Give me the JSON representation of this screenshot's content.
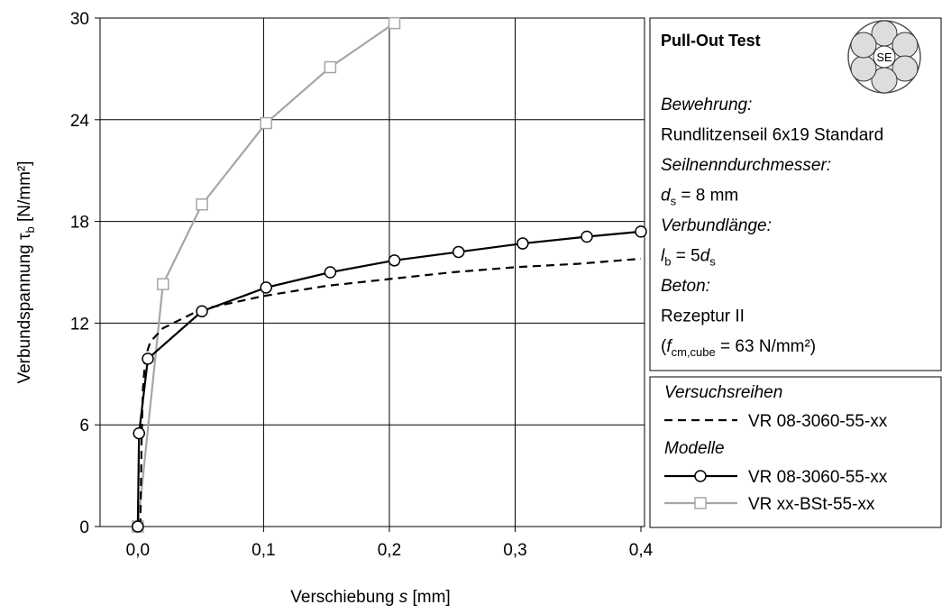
{
  "chart_data": {
    "type": "line",
    "x_label": [
      [
        "Verschiebung ",
        "n"
      ],
      [
        "s",
        "i"
      ],
      [
        " [mm]",
        "n"
      ]
    ],
    "y_label": [
      [
        "Verbundspannung τ",
        "n"
      ],
      [
        "b",
        "sub"
      ],
      [
        " [N/mm²]",
        "n"
      ]
    ],
    "xlim": [
      -0.03,
      0.4
    ],
    "ylim": [
      0,
      30
    ],
    "xticks": [
      {
        "value": 0,
        "label": "0,0"
      },
      {
        "value": 0.1,
        "label": "0,1"
      },
      {
        "value": 0.2,
        "label": "0,2"
      },
      {
        "value": 0.3,
        "label": "0,3"
      },
      {
        "value": 0.4,
        "label": "0,4"
      }
    ],
    "yticks": [
      0,
      6,
      12,
      18,
      24,
      30
    ],
    "grid": true,
    "legend_groups": [
      "Versuchsreihen",
      "Modelle"
    ],
    "series": [
      {
        "name": "VR 08-3060-55-xx",
        "color": "#000000",
        "dash": true,
        "marker": "none",
        "group": 0,
        "x": [
          0.002,
          0.003,
          0.004,
          0.006,
          0.01,
          0.02,
          0.05,
          0.1,
          0.15,
          0.2,
          0.25,
          0.3,
          0.35,
          0.4
        ],
        "values": [
          0,
          5,
          8,
          10,
          10.9,
          11.7,
          12.8,
          13.6,
          14.2,
          14.6,
          15.0,
          15.3,
          15.5,
          15.8
        ]
      },
      {
        "name": "VR 08-3060-55-xx",
        "color": "#000000",
        "dash": false,
        "marker": "circle",
        "group": 1,
        "x": [
          0,
          0.001,
          0.008,
          0.051,
          0.102,
          0.153,
          0.204,
          0.255,
          0.306,
          0.357,
          0.4
        ],
        "values": [
          0,
          5.5,
          9.9,
          12.7,
          14.1,
          15.0,
          15.7,
          16.2,
          16.7,
          17.1,
          17.4
        ]
      },
      {
        "name": "VR xx-BSt-55-xx",
        "color": "#a6a6a6",
        "dash": false,
        "marker": "square",
        "group": 1,
        "x": [
          0,
          0.02,
          0.051,
          0.102,
          0.153,
          0.204
        ],
        "values": [
          0,
          14.3,
          19.0,
          23.8,
          27.1,
          29.7
        ]
      }
    ]
  },
  "info": {
    "title": "Pull-Out Test",
    "icon_label": "SE",
    "lines": [
      [
        [
          "Bewehrung:",
          "i"
        ]
      ],
      [
        [
          "Rundlitzenseil 6x19 Standard",
          "n"
        ]
      ],
      [
        [
          "Seilnenndurchmesser:",
          "i"
        ]
      ],
      [
        [
          "d",
          "i"
        ],
        [
          "s",
          "sub"
        ],
        [
          " = 8 mm",
          "n"
        ]
      ],
      [
        [
          "Verbundlänge:",
          "i"
        ]
      ],
      [
        [
          "l",
          "i"
        ],
        [
          "b",
          "sub"
        ],
        [
          " = 5",
          "n"
        ],
        [
          "d",
          "i"
        ],
        [
          "s",
          "sub"
        ]
      ],
      [
        [
          "Beton:",
          "i"
        ]
      ],
      [
        [
          "Rezeptur II",
          "n"
        ]
      ],
      [
        [
          "(",
          "n"
        ],
        [
          "f",
          "i"
        ],
        [
          "cm,cube",
          "sub"
        ],
        [
          " = 63 N/mm²)",
          "n"
        ]
      ]
    ]
  }
}
